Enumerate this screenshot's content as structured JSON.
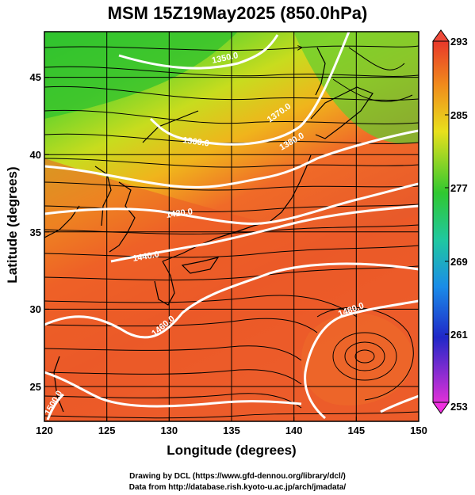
{
  "title": "MSM 15Z19May2025 (850.0hPa)",
  "chart_data": {
    "type": "map",
    "xlabel": "Longitude (degrees)",
    "ylabel": "Latitude  (degrees)",
    "xlim": [
      120,
      150
    ],
    "ylim": [
      22.4,
      47.6
    ],
    "x_ticks": [
      "120",
      "125",
      "130",
      "135",
      "140",
      "145",
      "150"
    ],
    "y_ticks": [
      "25",
      "30",
      "35",
      "40",
      "45"
    ],
    "colorbar": {
      "range": [
        253,
        293
      ],
      "ticks": [
        "293",
        "285",
        "277",
        "269",
        "261",
        "253"
      ]
    },
    "contour_labels": [
      "1350.0",
      "1360.0",
      "1370.0",
      "1380.0",
      "1420.0",
      "1440.0",
      "1460.0",
      "1480.0",
      "1500.0"
    ]
  },
  "credits": {
    "line1": "Drawing by DCL (https://www.gfd-dennou.org/library/dcl/)",
    "line2": "Data from http://database.rish.kyoto-u.ac.jp/arch/jmadata/"
  }
}
